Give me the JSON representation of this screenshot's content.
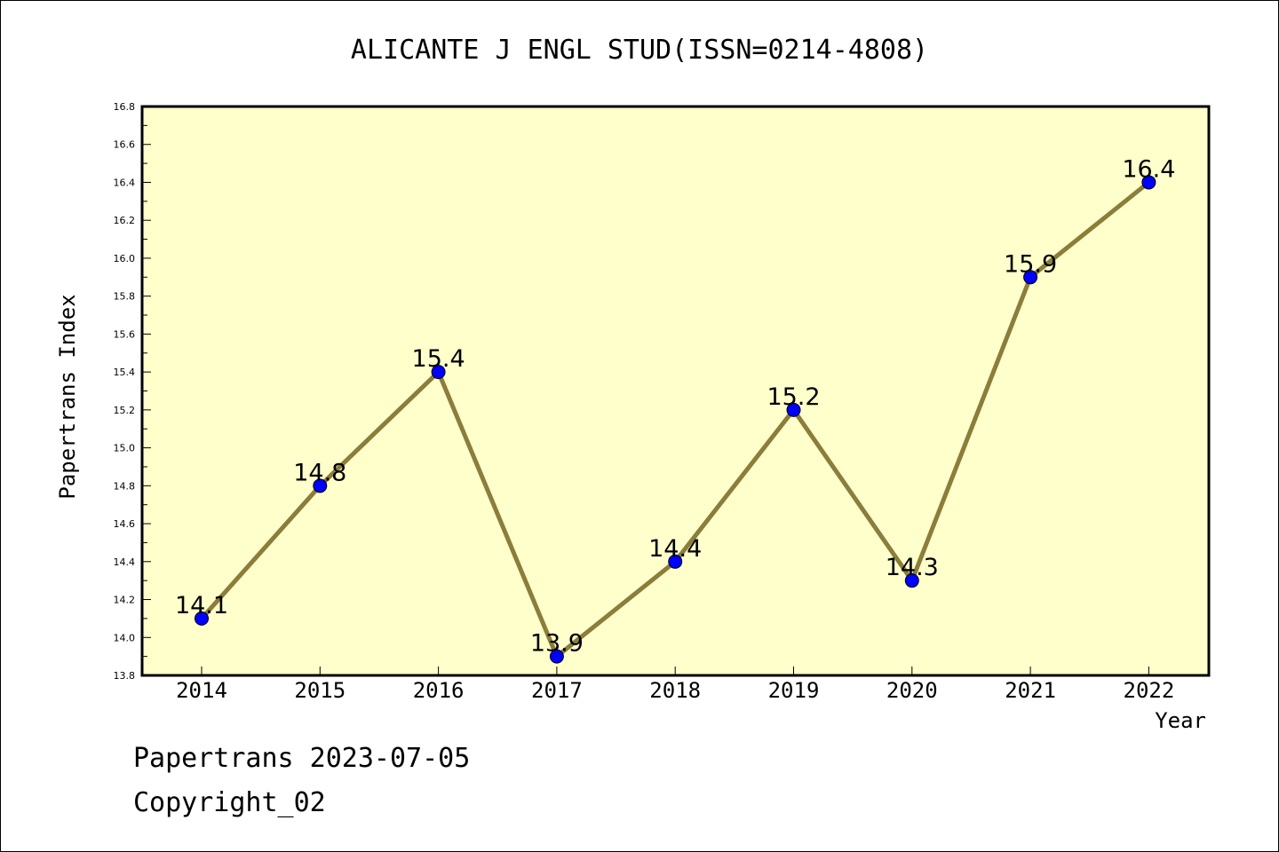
{
  "chart_data": {
    "type": "line",
    "title": "ALICANTE J ENGL STUD(ISSN=0214-4808)",
    "xlabel": "Year",
    "ylabel": "Papertrans Index",
    "categories": [
      "2014",
      "2015",
      "2016",
      "2017",
      "2018",
      "2019",
      "2020",
      "2021",
      "2022"
    ],
    "values": [
      14.1,
      14.8,
      15.4,
      13.9,
      14.4,
      15.2,
      14.3,
      15.9,
      16.4
    ],
    "data_labels": [
      "14.1",
      "14.8",
      "15.4",
      "13.9",
      "14.4",
      "15.2",
      "14.3",
      "15.9",
      "16.4"
    ],
    "ylim": [
      13.8,
      16.8
    ],
    "yticks": [
      "13.8",
      "14.0",
      "14.2",
      "14.4",
      "14.6",
      "14.8",
      "15.0",
      "15.2",
      "15.4",
      "15.6",
      "15.8",
      "16.0",
      "16.2",
      "16.4",
      "16.6",
      "16.8"
    ],
    "grid": false,
    "colors": {
      "plot_background": "#ffffcc",
      "line": "#8b7d3a",
      "marker": "#0000ff"
    }
  },
  "footer": {
    "line1": "Papertrans 2023-07-05",
    "line2": "Copyright_02"
  }
}
